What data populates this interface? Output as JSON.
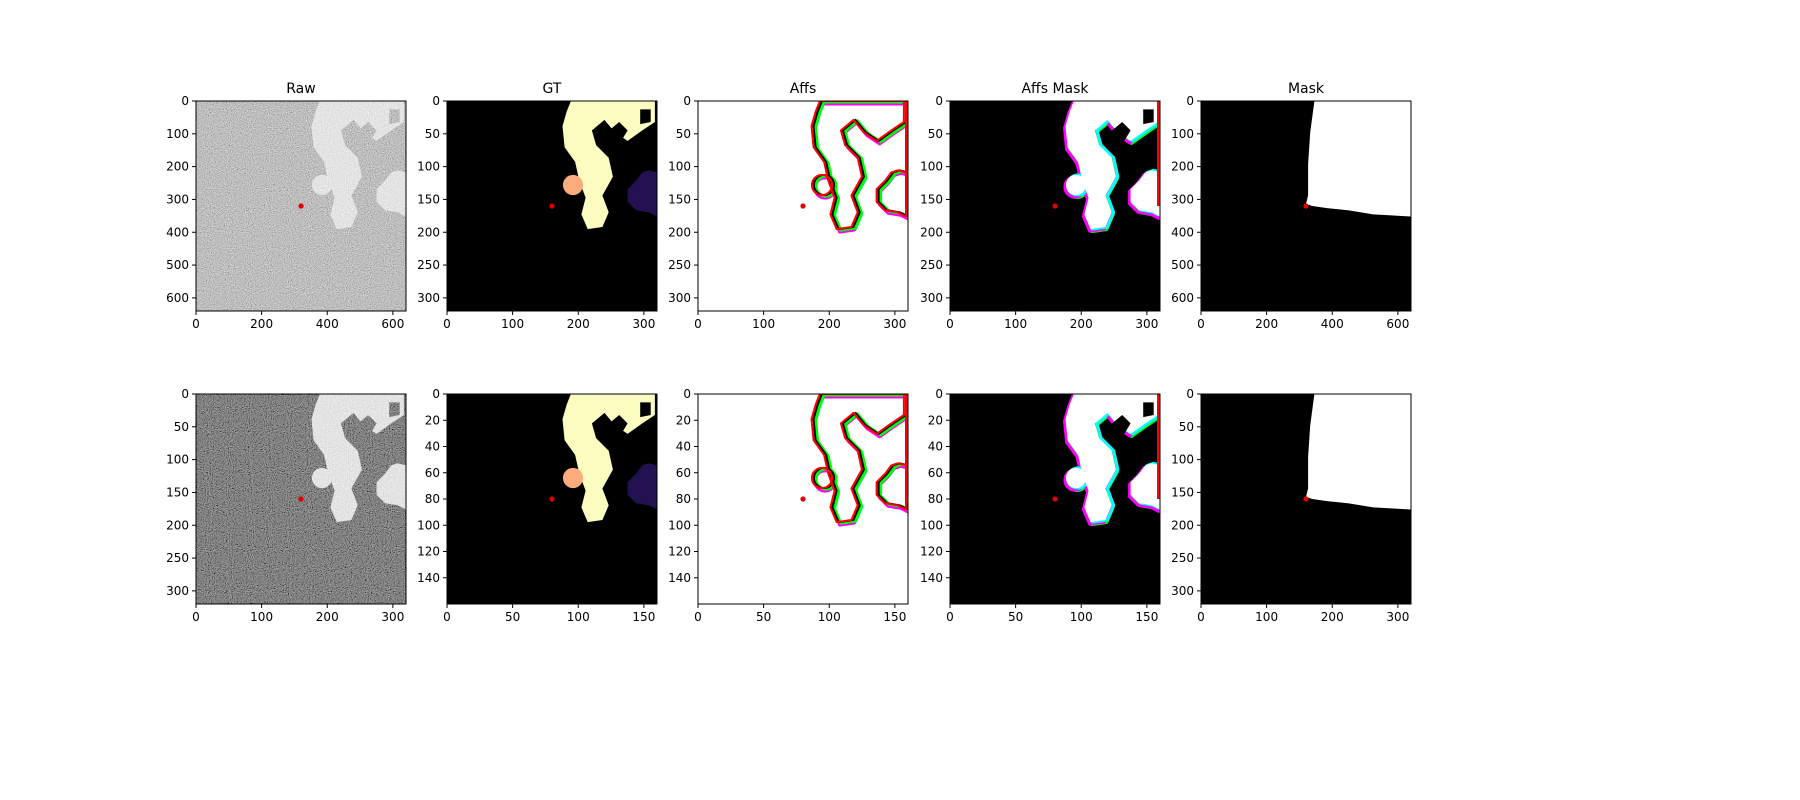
{
  "chart_data": {
    "type": "image_grid",
    "marker_color": "#e00000",
    "grid": false,
    "rows": [
      {
        "panels": [
          {
            "title": "Raw",
            "kind": "raw",
            "x_range": [
              0,
              640
            ],
            "y_range": [
              0,
              640
            ],
            "xticks": [
              0,
              200,
              400,
              600
            ],
            "yticks": [
              0,
              100,
              200,
              300,
              400,
              500,
              600
            ],
            "marker": {
              "x": 320,
              "y": 320
            }
          },
          {
            "title": "GT",
            "kind": "gt",
            "x_range": [
              0,
              320
            ],
            "y_range": [
              0,
              320
            ],
            "xticks": [
              0,
              100,
              200,
              300
            ],
            "yticks": [
              0,
              50,
              100,
              150,
              200,
              250,
              300
            ],
            "marker": {
              "x": 160,
              "y": 160
            }
          },
          {
            "title": "Affs",
            "kind": "affs",
            "x_range": [
              0,
              320
            ],
            "y_range": [
              0,
              320
            ],
            "xticks": [
              0,
              100,
              200,
              300
            ],
            "yticks": [
              0,
              50,
              100,
              150,
              200,
              250,
              300
            ],
            "marker": {
              "x": 160,
              "y": 160
            }
          },
          {
            "title": "Affs Mask",
            "kind": "affsmask",
            "x_range": [
              0,
              320
            ],
            "y_range": [
              0,
              320
            ],
            "xticks": [
              0,
              100,
              200,
              300
            ],
            "yticks": [
              0,
              50,
              100,
              150,
              200,
              250,
              300
            ],
            "marker": {
              "x": 160,
              "y": 160
            }
          },
          {
            "title": "Mask",
            "kind": "mask",
            "x_range": [
              0,
              640
            ],
            "y_range": [
              0,
              640
            ],
            "xticks": [
              0,
              200,
              400,
              600
            ],
            "yticks": [
              0,
              100,
              200,
              300,
              400,
              500,
              600
            ],
            "marker": {
              "x": 320,
              "y": 320
            }
          }
        ]
      },
      {
        "panels": [
          {
            "title": "",
            "kind": "raw",
            "x_range": [
              0,
              320
            ],
            "y_range": [
              0,
              320
            ],
            "xticks": [
              0,
              100,
              200,
              300
            ],
            "yticks": [
              0,
              50,
              100,
              150,
              200,
              250,
              300
            ],
            "marker": {
              "x": 160,
              "y": 160
            }
          },
          {
            "title": "",
            "kind": "gt",
            "x_range": [
              0,
              160
            ],
            "y_range": [
              0,
              160
            ],
            "xticks": [
              0,
              50,
              100,
              150
            ],
            "yticks": [
              0,
              20,
              40,
              60,
              80,
              100,
              120,
              140
            ],
            "marker": {
              "x": 80,
              "y": 80
            }
          },
          {
            "title": "",
            "kind": "affs",
            "x_range": [
              0,
              160
            ],
            "y_range": [
              0,
              160
            ],
            "xticks": [
              0,
              50,
              100,
              150
            ],
            "yticks": [
              0,
              20,
              40,
              60,
              80,
              100,
              120,
              140
            ],
            "marker": {
              "x": 80,
              "y": 80
            }
          },
          {
            "title": "",
            "kind": "affsmask",
            "x_range": [
              0,
              160
            ],
            "y_range": [
              0,
              160
            ],
            "xticks": [
              0,
              50,
              100,
              150
            ],
            "yticks": [
              0,
              20,
              40,
              60,
              80,
              100,
              120,
              140
            ],
            "marker": {
              "x": 80,
              "y": 80
            }
          },
          {
            "title": "",
            "kind": "mask",
            "x_range": [
              0,
              320
            ],
            "y_range": [
              0,
              320
            ],
            "xticks": [
              0,
              100,
              200,
              300
            ],
            "yticks": [
              0,
              50,
              100,
              150,
              200,
              250,
              300
            ],
            "marker": {
              "x": 160,
              "y": 160
            }
          }
        ]
      }
    ],
    "colors": {
      "gt_object_1": "#fbfcbf",
      "gt_object_2": "#fcac7c",
      "gt_object_3": "#231151",
      "affs_edge_1": "#ff0000",
      "affs_edge_2": "#00ff00",
      "affs_edge_3": "#ff00ff",
      "affs_edge_4": "#00ffff",
      "mask_foreground": "#ffffff",
      "background": "#000000"
    }
  }
}
